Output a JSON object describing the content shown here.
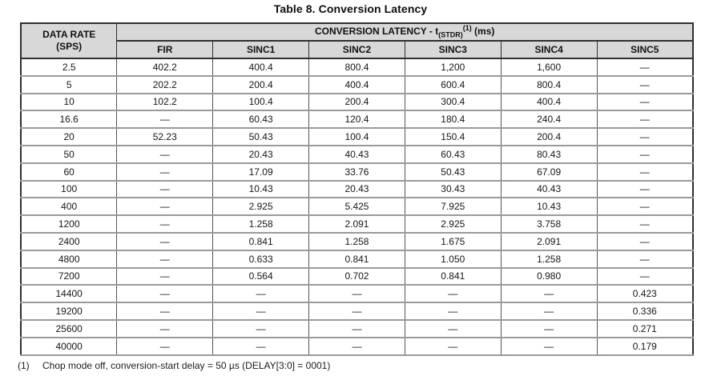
{
  "title": "Table 8. Conversion Latency",
  "colors": {
    "header_fill": "#d8d8d8",
    "outer_border": "#2f2f2f",
    "row_line": "#9a9a9a",
    "column_line": "#555555"
  },
  "table": {
    "row_header": {
      "line1": "DATA RATE",
      "line2": "(SPS)"
    },
    "span_header": {
      "prefix": "CONVERSION LATENCY - t",
      "subscript": "(STDR)",
      "superscript": "(1)",
      "suffix": " (ms)"
    },
    "columns": [
      "FIR",
      "SINC1",
      "SINC2",
      "SINC3",
      "SINC4",
      "SINC5"
    ],
    "rows": [
      {
        "rate": "2.5",
        "values": [
          "402.2",
          "400.4",
          "800.4",
          "1,200",
          "1,600",
          "—"
        ]
      },
      {
        "rate": "5",
        "values": [
          "202.2",
          "200.4",
          "400.4",
          "600.4",
          "800.4",
          "—"
        ]
      },
      {
        "rate": "10",
        "values": [
          "102.2",
          "100.4",
          "200.4",
          "300.4",
          "400.4",
          "—"
        ]
      },
      {
        "rate": "16.6",
        "values": [
          "—",
          "60.43",
          "120.4",
          "180.4",
          "240.4",
          "—"
        ]
      },
      {
        "rate": "20",
        "values": [
          "52.23",
          "50.43",
          "100.4",
          "150.4",
          "200.4",
          "—"
        ]
      },
      {
        "rate": "50",
        "values": [
          "—",
          "20.43",
          "40.43",
          "60.43",
          "80.43",
          "—"
        ]
      },
      {
        "rate": "60",
        "values": [
          "—",
          "17.09",
          "33.76",
          "50.43",
          "67.09",
          "—"
        ]
      },
      {
        "rate": "100",
        "values": [
          "—",
          "10.43",
          "20.43",
          "30.43",
          "40.43",
          "—"
        ]
      },
      {
        "rate": "400",
        "values": [
          "—",
          "2.925",
          "5.425",
          "7.925",
          "10.43",
          "—"
        ]
      },
      {
        "rate": "1200",
        "values": [
          "—",
          "1.258",
          "2.091",
          "2.925",
          "3.758",
          "—"
        ]
      },
      {
        "rate": "2400",
        "values": [
          "—",
          "0.841",
          "1.258",
          "1.675",
          "2.091",
          "—"
        ]
      },
      {
        "rate": "4800",
        "values": [
          "—",
          "0.633",
          "0.841",
          "1.050",
          "1.258",
          "—"
        ]
      },
      {
        "rate": "7200",
        "values": [
          "—",
          "0.564",
          "0.702",
          "0.841",
          "0.980",
          "—"
        ]
      },
      {
        "rate": "14400",
        "values": [
          "—",
          "—",
          "—",
          "—",
          "—",
          "0.423"
        ]
      },
      {
        "rate": "19200",
        "values": [
          "—",
          "—",
          "—",
          "—",
          "—",
          "0.336"
        ]
      },
      {
        "rate": "25600",
        "values": [
          "—",
          "—",
          "—",
          "—",
          "—",
          "0.271"
        ]
      },
      {
        "rate": "40000",
        "values": [
          "—",
          "—",
          "—",
          "—",
          "—",
          "0.179"
        ]
      }
    ]
  },
  "footnote": {
    "marker": "(1)",
    "text": "Chop mode off, conversion-start delay = 50 µs (DELAY[3:0] = 0001)"
  }
}
